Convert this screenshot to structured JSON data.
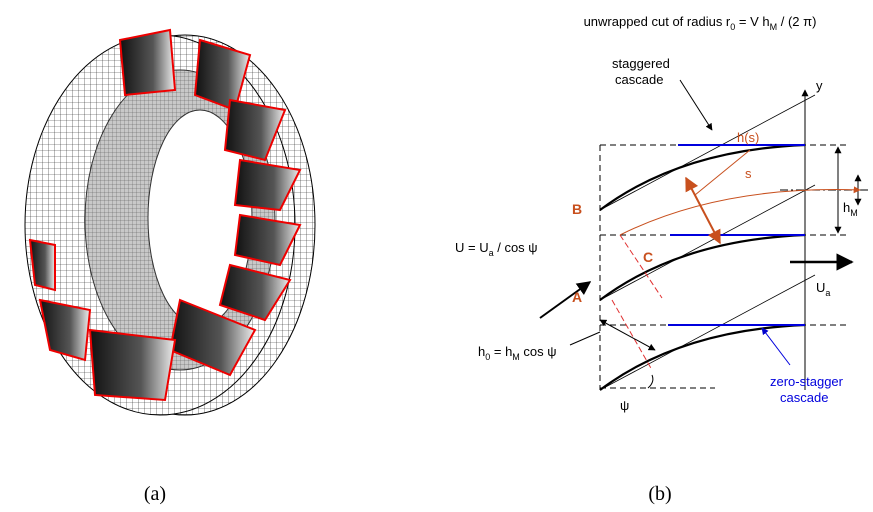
{
  "title": [
    "unwrapped cut of radius r",
    "0",
    " = V h",
    "M",
    " / (2 π)"
  ],
  "labels": {
    "staggered_cascade": [
      "staggered",
      "cascade"
    ],
    "y": "y",
    "h_s": "h(s)",
    "s": "s",
    "h_M": [
      "h",
      "M"
    ],
    "B": "B",
    "C": "C",
    "A": "A",
    "U": [
      "U = U",
      "a",
      " / cos ψ"
    ],
    "U_a": [
      "U",
      "a"
    ],
    "h_0": [
      "h",
      "0",
      " = h",
      "M",
      " cos ψ"
    ],
    "psi": "ψ",
    "zero_stagger": [
      "zero-stagger",
      "cascade"
    ]
  },
  "captions": [
    "(a)",
    "(b)"
  ]
}
